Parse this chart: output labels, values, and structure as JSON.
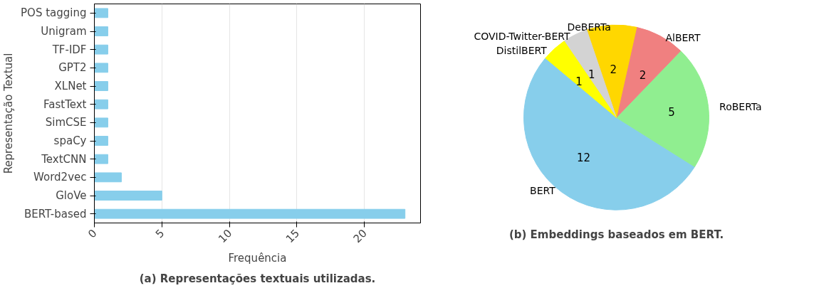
{
  "chart_data": [
    {
      "type": "bar",
      "orientation": "horizontal",
      "categories": [
        "POS tagging",
        "Unigram",
        "TF-IDF",
        "GPT2",
        "XLNet",
        "FastText",
        "SimCSE",
        "spaCy",
        "TextCNN",
        "Word2vec",
        "GloVe",
        "BERT-based"
      ],
      "values": [
        1,
        1,
        1,
        1,
        1,
        1,
        1,
        1,
        1,
        2,
        5,
        23
      ],
      "color": "#87ceeb",
      "xlim": [
        0,
        24.15
      ],
      "xticks": [
        0,
        5,
        10,
        15,
        20
      ],
      "xlabel": "Frequência",
      "ylabel": "Representação Textual",
      "grid": "x",
      "annotations": [
        "(a) Representações textuais utilizadas."
      ]
    },
    {
      "type": "pie",
      "categories": [
        "BERT",
        "RoBERTa",
        "AlBERT",
        "DeBERTa",
        "COVID-Twitter-BERT",
        "DistilBERT"
      ],
      "values": [
        12,
        5,
        2,
        2,
        1,
        1
      ],
      "colors": [
        "#87ceeb",
        "#90ee90",
        "#f08080",
        "#ffd700",
        "#d3d3d3",
        "#ffff00"
      ],
      "data_labels": true,
      "annotations": [
        "(b) Embeddings baseados em BERT."
      ]
    }
  ]
}
